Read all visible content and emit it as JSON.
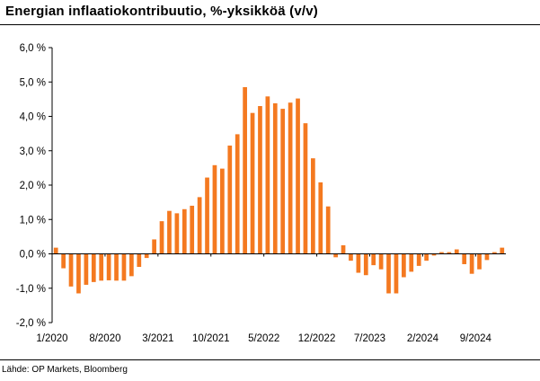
{
  "title": "Energian inflaatiokontribuutio, %-yksikköä (v/v)",
  "source": "Lähde: OP Markets, Bloomberg",
  "colors": {
    "bar": "#f47920",
    "axis": "#000000"
  },
  "chart_data": {
    "type": "bar",
    "title": "Energian inflaatiokontribuutio, %-yksikköä (v/v)",
    "xlabel": "",
    "ylabel": "",
    "ylim": [
      -2,
      6
    ],
    "grid": false,
    "yticks": [
      "6,0 %",
      "5,0 %",
      "4,0 %",
      "3,0 %",
      "2,0 %",
      "1,0 %",
      "0,0 %",
      "-1,0 %",
      "-2,0 %"
    ],
    "xtick_labels": [
      "1/2020",
      "8/2020",
      "3/2021",
      "10/2021",
      "5/2022",
      "12/2022",
      "7/2023",
      "2/2024",
      "9/2024"
    ],
    "categories": [
      "1/2020",
      "2/2020",
      "3/2020",
      "4/2020",
      "5/2020",
      "6/2020",
      "7/2020",
      "8/2020",
      "9/2020",
      "10/2020",
      "11/2020",
      "12/2020",
      "1/2021",
      "2/2021",
      "3/2021",
      "4/2021",
      "5/2021",
      "6/2021",
      "7/2021",
      "8/2021",
      "9/2021",
      "10/2021",
      "11/2021",
      "12/2021",
      "1/2022",
      "2/2022",
      "3/2022",
      "4/2022",
      "5/2022",
      "6/2022",
      "7/2022",
      "8/2022",
      "9/2022",
      "10/2022",
      "11/2022",
      "12/2022",
      "1/2023",
      "2/2023",
      "3/2023",
      "4/2023",
      "5/2023",
      "6/2023",
      "7/2023",
      "8/2023",
      "9/2023",
      "10/2023",
      "11/2023",
      "12/2023",
      "1/2024",
      "2/2024",
      "3/2024",
      "4/2024",
      "5/2024",
      "6/2024",
      "7/2024",
      "8/2024",
      "9/2024",
      "10/2024",
      "11/2024",
      "12/2024"
    ],
    "values": [
      0.18,
      -0.42,
      -0.95,
      -1.15,
      -0.9,
      -0.82,
      -0.78,
      -0.77,
      -0.78,
      -0.78,
      -0.65,
      -0.38,
      -0.12,
      0.42,
      0.95,
      1.25,
      1.18,
      1.3,
      1.4,
      1.65,
      2.22,
      2.58,
      2.48,
      3.15,
      3.48,
      4.85,
      4.1,
      4.3,
      4.58,
      4.38,
      4.22,
      4.4,
      4.52,
      3.8,
      2.78,
      2.08,
      1.38,
      -0.1,
      0.25,
      -0.2,
      -0.55,
      -0.62,
      -0.33,
      -0.45,
      -1.15,
      -1.15,
      -0.68,
      -0.52,
      -0.35,
      -0.2,
      -0.05,
      0.05,
      0.05,
      0.13,
      -0.3,
      -0.58,
      -0.45,
      -0.18,
      0.05,
      0.18
    ]
  }
}
